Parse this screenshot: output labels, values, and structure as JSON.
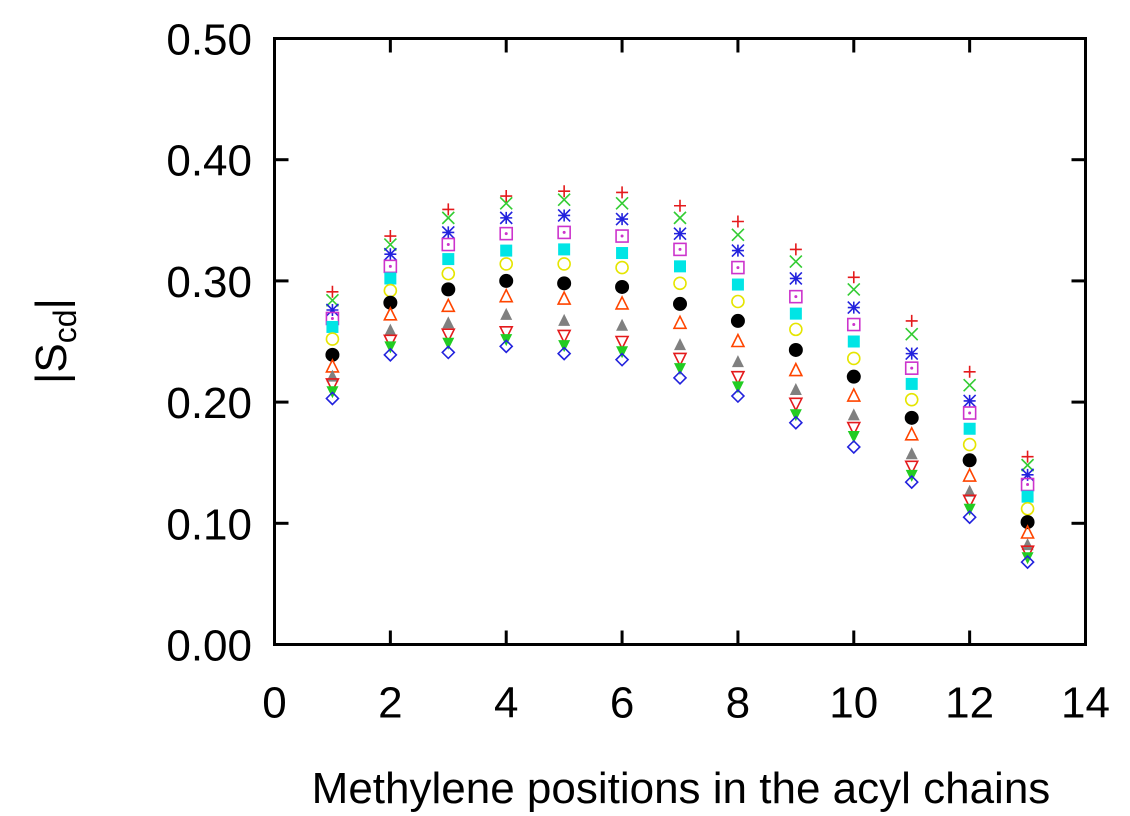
{
  "chart_data": {
    "type": "scatter",
    "title": "",
    "xlabel": "Methylene positions in the acyl chains",
    "ylabel": {
      "main": "|S",
      "sub": "cd",
      "close": "|"
    },
    "xlim": [
      0,
      14
    ],
    "ylim": [
      0.0,
      0.5
    ],
    "xticks": [
      0,
      2,
      4,
      6,
      8,
      10,
      12,
      14
    ],
    "xtick_labels": [
      "0",
      "2",
      "4",
      "6",
      "8",
      "10",
      "12",
      "14"
    ],
    "yticks": [
      0.0,
      0.1,
      0.2,
      0.3,
      0.4,
      0.5
    ],
    "ytick_labels": [
      "0.00",
      "0.10",
      "0.20",
      "0.30",
      "0.40",
      "0.50"
    ],
    "grid": false,
    "legend": "none",
    "x": [
      1,
      2,
      3,
      4,
      5,
      6,
      7,
      8,
      9,
      10,
      11,
      12,
      13
    ],
    "series": [
      {
        "marker": "plus",
        "color": "#e41a1c",
        "values": [
          0.291,
          0.337,
          0.359,
          0.37,
          0.374,
          0.373,
          0.362,
          0.349,
          0.326,
          0.303,
          0.267,
          0.225,
          0.155
        ]
      },
      {
        "marker": "cross",
        "color": "#33cc33",
        "values": [
          0.284,
          0.33,
          0.352,
          0.364,
          0.367,
          0.364,
          0.352,
          0.338,
          0.316,
          0.293,
          0.256,
          0.214,
          0.148
        ]
      },
      {
        "marker": "star",
        "color": "#2222dd",
        "values": [
          0.276,
          0.322,
          0.34,
          0.352,
          0.354,
          0.351,
          0.339,
          0.325,
          0.302,
          0.278,
          0.24,
          0.201,
          0.14
        ]
      },
      {
        "marker": "dotted-square",
        "color": "#cc33cc",
        "values": [
          0.269,
          0.312,
          0.33,
          0.339,
          0.34,
          0.337,
          0.326,
          0.311,
          0.287,
          0.264,
          0.228,
          0.191,
          0.132
        ]
      },
      {
        "marker": "filled-square",
        "color": "#00e5e5",
        "values": [
          0.262,
          0.302,
          0.318,
          0.325,
          0.326,
          0.323,
          0.312,
          0.297,
          0.273,
          0.25,
          0.215,
          0.178,
          0.122
        ]
      },
      {
        "marker": "open-circle",
        "color": "#e5e500",
        "values": [
          0.252,
          0.292,
          0.306,
          0.314,
          0.314,
          0.311,
          0.298,
          0.283,
          0.26,
          0.236,
          0.202,
          0.165,
          0.112
        ]
      },
      {
        "marker": "filled-circle",
        "color": "#000000",
        "values": [
          0.239,
          0.282,
          0.293,
          0.3,
          0.298,
          0.295,
          0.281,
          0.267,
          0.243,
          0.221,
          0.187,
          0.152,
          0.101
        ]
      },
      {
        "marker": "open-triangle",
        "color": "#ff4500",
        "values": [
          0.229,
          0.272,
          0.279,
          0.287,
          0.285,
          0.281,
          0.265,
          0.25,
          0.226,
          0.205,
          0.173,
          0.139,
          0.092
        ]
      },
      {
        "marker": "filled-triangle",
        "color": "#808080",
        "values": [
          0.221,
          0.259,
          0.265,
          0.272,
          0.267,
          0.263,
          0.247,
          0.233,
          0.21,
          0.189,
          0.157,
          0.126,
          0.082
        ]
      },
      {
        "marker": "open-triangle-down",
        "color": "#e41a1c",
        "values": [
          0.215,
          0.251,
          0.256,
          0.258,
          0.255,
          0.25,
          0.236,
          0.221,
          0.199,
          0.179,
          0.147,
          0.119,
          0.077
        ]
      },
      {
        "marker": "filled-triangle-down",
        "color": "#22cc22",
        "values": [
          0.209,
          0.246,
          0.249,
          0.252,
          0.247,
          0.242,
          0.228,
          0.213,
          0.19,
          0.172,
          0.14,
          0.112,
          0.072
        ]
      },
      {
        "marker": "open-diamond",
        "color": "#2222dd",
        "values": [
          0.203,
          0.239,
          0.241,
          0.246,
          0.24,
          0.235,
          0.22,
          0.205,
          0.183,
          0.163,
          0.134,
          0.105,
          0.068
        ]
      }
    ]
  }
}
